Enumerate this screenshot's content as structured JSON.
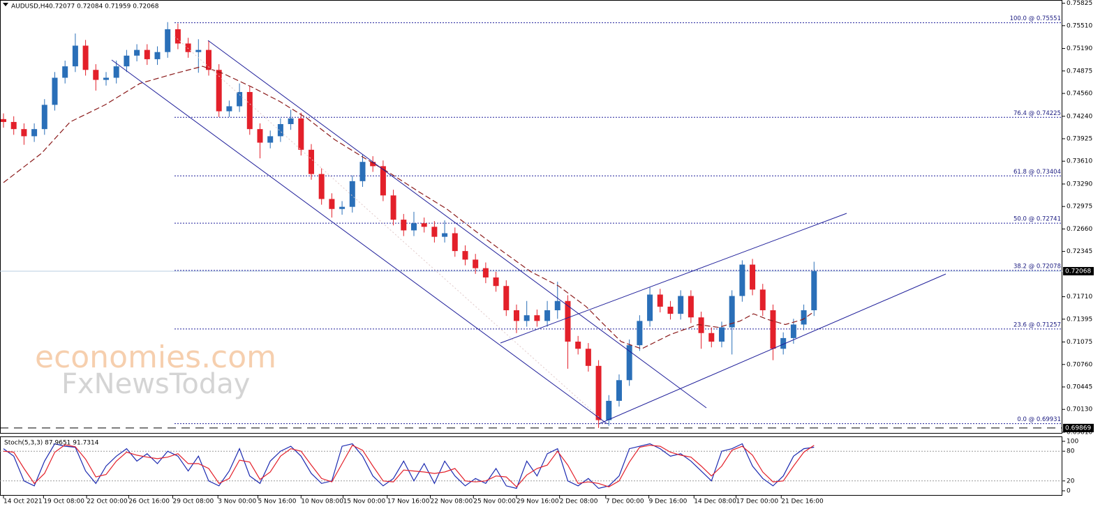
{
  "chart_data": {
    "type": "candlestick",
    "symbol": "AUDUSD,H4",
    "ohlc_text": "0.72077 0.72084 0.71959 0.72068",
    "xlim": [
      -0.34,
      103.2
    ],
    "ylim": [
      0.6979,
      0.7587
    ],
    "up_color": "#2a6fb8",
    "down_color": "#e3202a",
    "open": [
      0.742,
      0.7416,
      0.7406,
      0.7396,
      0.7406,
      0.744,
      0.7478,
      0.7494,
      0.7523,
      0.7489,
      0.7475,
      0.7478,
      0.7494,
      0.7509,
      0.7517,
      0.7504,
      0.7514,
      0.7546,
      0.7526,
      0.7514,
      0.7517,
      0.7489,
      0.7431,
      0.7438,
      0.7458,
      0.7406,
      0.7387,
      0.7396,
      0.7413,
      0.7421,
      0.7377,
      0.7343,
      0.7308,
      0.7294,
      0.7297,
      0.7333,
      0.736,
      0.7354,
      0.7313,
      0.7279,
      0.7264,
      0.7274,
      0.7269,
      0.7255,
      0.726,
      0.7235,
      0.7223,
      0.7211,
      0.7198,
      0.7186,
      0.7152,
      0.7137,
      0.7145,
      0.7137,
      0.7152,
      0.7165,
      0.7108,
      0.7098,
      0.7074,
      0.6998,
      0.7025,
      0.7054,
      0.7103,
      0.7137,
      0.7174,
      0.7157,
      0.7147,
      0.7172,
      0.7142,
      0.712,
      0.7108,
      0.7128,
      0.7172,
      0.7216,
      0.7181,
      0.7152,
      0.7098,
      0.7113,
      0.7132,
      0.7152
    ],
    "high": [
      0.7428,
      0.7424,
      0.7414,
      0.7414,
      0.7448,
      0.7486,
      0.7502,
      0.754,
      0.7531,
      0.7497,
      0.7486,
      0.7502,
      0.7517,
      0.7525,
      0.7525,
      0.7522,
      0.7556,
      0.7554,
      0.7534,
      0.7532,
      0.753,
      0.7497,
      0.7446,
      0.747,
      0.7466,
      0.7414,
      0.7404,
      0.7421,
      0.7433,
      0.7429,
      0.7385,
      0.7351,
      0.7316,
      0.7305,
      0.7341,
      0.737,
      0.7368,
      0.7362,
      0.7321,
      0.7287,
      0.729,
      0.7282,
      0.7277,
      0.7278,
      0.7268,
      0.7243,
      0.7231,
      0.7219,
      0.7206,
      0.7194,
      0.716,
      0.7165,
      0.7153,
      0.7165,
      0.7192,
      0.7173,
      0.7116,
      0.7106,
      0.7082,
      0.7033,
      0.7062,
      0.7111,
      0.7145,
      0.7184,
      0.7182,
      0.7165,
      0.718,
      0.718,
      0.715,
      0.7128,
      0.7136,
      0.718,
      0.7222,
      0.7224,
      0.7189,
      0.716,
      0.7121,
      0.714,
      0.716,
      0.722
    ],
    "low": [
      0.7408,
      0.7398,
      0.7384,
      0.7388,
      0.7398,
      0.7432,
      0.747,
      0.7486,
      0.7481,
      0.746,
      0.7467,
      0.747,
      0.7486,
      0.7501,
      0.7496,
      0.7496,
      0.7506,
      0.7518,
      0.7506,
      0.7485,
      0.7481,
      0.7423,
      0.7423,
      0.743,
      0.7398,
      0.7365,
      0.7379,
      0.7388,
      0.7405,
      0.7369,
      0.7335,
      0.73,
      0.7282,
      0.7286,
      0.7289,
      0.7325,
      0.7346,
      0.7305,
      0.7271,
      0.7256,
      0.7256,
      0.7261,
      0.7247,
      0.7247,
      0.7227,
      0.7215,
      0.7203,
      0.719,
      0.7178,
      0.7144,
      0.712,
      0.7129,
      0.7129,
      0.7129,
      0.714,
      0.707,
      0.709,
      0.7066,
      0.6987,
      0.699,
      0.7017,
      0.7046,
      0.7095,
      0.7129,
      0.7149,
      0.7139,
      0.7139,
      0.7134,
      0.7098,
      0.71,
      0.71,
      0.709,
      0.7164,
      0.7173,
      0.7144,
      0.7082,
      0.709,
      0.7105,
      0.7124,
      0.7144
    ],
    "close": [
      0.7416,
      0.7406,
      0.7396,
      0.7406,
      0.744,
      0.7478,
      0.7494,
      0.7523,
      0.7489,
      0.7475,
      0.7478,
      0.7494,
      0.7509,
      0.7517,
      0.7504,
      0.7514,
      0.7546,
      0.7526,
      0.7514,
      0.7517,
      0.7489,
      0.7431,
      0.7438,
      0.7458,
      0.7406,
      0.7387,
      0.7396,
      0.7413,
      0.7421,
      0.7377,
      0.7343,
      0.7308,
      0.7294,
      0.7297,
      0.7333,
      0.736,
      0.7354,
      0.7313,
      0.7279,
      0.7264,
      0.7274,
      0.7269,
      0.7255,
      0.726,
      0.7235,
      0.7223,
      0.7211,
      0.7198,
      0.7186,
      0.7152,
      0.7137,
      0.7145,
      0.7137,
      0.7152,
      0.7165,
      0.7108,
      0.7098,
      0.7074,
      0.6998,
      0.7025,
      0.7054,
      0.7103,
      0.7137,
      0.7174,
      0.7157,
      0.7147,
      0.7172,
      0.7142,
      0.712,
      0.7108,
      0.7128,
      0.7172,
      0.7216,
      0.7181,
      0.7152,
      0.7098,
      0.7113,
      0.7132,
      0.7152,
      0.7207
    ],
    "ma": {
      "color": "#8b1a1a",
      "x": [
        0,
        3.7,
        6.5,
        9.9,
        13.3,
        16.7,
        19.4,
        21.4,
        24.2,
        26.9,
        29.6,
        32.3,
        35.0,
        37.8,
        40.5,
        43.2,
        45.9,
        48.6,
        51.4,
        54.1,
        56.8,
        58.8,
        60.2,
        62.2,
        65.0,
        67.7,
        69.7,
        71.8,
        73.1,
        74.5,
        76.2,
        77.9,
        78.9
      ],
      "values": [
        0.7331,
        0.7372,
        0.7416,
        0.744,
        0.747,
        0.7484,
        0.7494,
        0.7484,
        0.7465,
        0.7445,
        0.7421,
        0.7391,
        0.7367,
        0.7343,
        0.7318,
        0.7294,
        0.7264,
        0.7235,
        0.7206,
        0.7186,
        0.7157,
        0.7128,
        0.7108,
        0.7098,
        0.7118,
        0.7132,
        0.7128,
        0.7137,
        0.7147,
        0.7139,
        0.7132,
        0.7139,
        0.7149
      ]
    },
    "yticks": [
      0.75825,
      {
        "value": 0.7551,
        "label": "0.75510"
      },
      {
        "value": 0.7519,
        "label": "0.75190"
      },
      0.74875,
      {
        "value": 0.7456,
        "label": "0.74560"
      },
      {
        "value": 0.7424,
        "label": "0.74240"
      },
      0.73925,
      {
        "value": 0.7361,
        "label": "0.73610"
      },
      {
        "value": 0.7329,
        "label": "0.73290"
      },
      0.72975,
      {
        "value": 0.7266,
        "label": "0.72660"
      },
      0.72345,
      {
        "value": 0.7171,
        "label": "0.71710"
      },
      0.71395,
      0.71075,
      {
        "value": 0.7076,
        "label": "0.70760"
      },
      0.70445,
      {
        "value": 0.7013,
        "label": "0.70130"
      },
      {
        "value": 0.6981,
        "label": "0.69810"
      }
    ],
    "current_price": 0.72068,
    "dashed_level": 0.69869,
    "fibonacci": [
      {
        "label": "100.0 @ 0.75551",
        "value": 0.75551
      },
      {
        "label": "76.4 @ 0.74225",
        "value": 0.74225
      },
      {
        "label": "61.8 @ 0.73404",
        "value": 0.73404
      },
      {
        "label": "50.0 @ 0.72741",
        "value": 0.72741
      },
      {
        "label": "38.2 @ 0.72078",
        "value": 0.72078
      },
      {
        "label": "23.6 @ 0.71257",
        "value": 0.71257
      },
      {
        "label": "0.0 @ 0.69931",
        "value": 0.69931
      }
    ],
    "xticks": [
      {
        "value": 0,
        "label": "14 Oct 2021"
      },
      {
        "value": 3.9,
        "label": "19 Oct 08:00"
      },
      {
        "value": 8.1,
        "label": "22 Oct 00:00"
      },
      {
        "value": 12.2,
        "label": "26 Oct 16:00"
      },
      {
        "value": 16.5,
        "label": "29 Oct 08:00"
      },
      {
        "value": 20.9,
        "label": "3 Nov 00:00"
      },
      {
        "value": 24.8,
        "label": "5 Nov 16:00"
      },
      {
        "value": 29.0,
        "label": "10 Nov 08:00"
      },
      {
        "value": 33.1,
        "label": "15 Nov 00:00"
      },
      {
        "value": 37.4,
        "label": "17 Nov 16:00"
      },
      {
        "value": 41.6,
        "label": "22 Nov 08:00"
      },
      {
        "value": 45.8,
        "label": "25 Nov 00:00"
      },
      {
        "value": 50.0,
        "label": "29 Nov 16:00"
      },
      {
        "value": 54.2,
        "label": "2 Dec 08:00"
      },
      {
        "value": 58.7,
        "label": "7 Dec 00:00"
      },
      {
        "value": 62.9,
        "label": "9 Dec 16:00"
      },
      {
        "value": 67.3,
        "label": "14 Dec 08:00"
      },
      {
        "value": 71.4,
        "label": "17 Dec 00:00"
      },
      {
        "value": 75.8,
        "label": "21 Dec 16:00"
      }
    ],
    "stochastic": {
      "label": "Stoch(5,3,3) 87.9651 91.7314",
      "ylim": [
        0,
        100
      ],
      "yticks": [
        0,
        20,
        80,
        100
      ],
      "series": [
        {
          "color": "#1c2ab0",
          "values": [
            85,
            70,
            20,
            10,
            60,
            95,
            90,
            88,
            40,
            15,
            50,
            70,
            85,
            60,
            75,
            55,
            80,
            70,
            40,
            70,
            20,
            10,
            40,
            85,
            30,
            15,
            60,
            80,
            90,
            70,
            35,
            15,
            20,
            90,
            95,
            70,
            30,
            10,
            25,
            60,
            20,
            55,
            15,
            60,
            30,
            10,
            25,
            15,
            45,
            10,
            5,
            60,
            30,
            75,
            85,
            20,
            10,
            25,
            5,
            10,
            30,
            85,
            90,
            95,
            85,
            70,
            75,
            60,
            40,
            20,
            80,
            85,
            95,
            50,
            25,
            10,
            30,
            70,
            85,
            88
          ]
        },
        {
          "color": "#e3202a",
          "values": [
            80,
            78,
            45,
            15,
            35,
            78,
            93,
            89,
            64,
            28,
            33,
            60,
            78,
            72,
            68,
            65,
            68,
            75,
            55,
            55,
            45,
            15,
            25,
            62,
            58,
            23,
            38,
            70,
            85,
            80,
            52,
            25,
            18,
            55,
            92,
            82,
            50,
            20,
            18,
            42,
            40,
            38,
            35,
            38,
            45,
            20,
            18,
            20,
            30,
            28,
            8,
            32,
            45,
            52,
            80,
            52,
            15,
            18,
            15,
            8,
            20,
            58,
            88,
            92,
            90,
            78,
            72,
            68,
            50,
            30,
            50,
            82,
            90,
            72,
            38,
            18,
            20,
            50,
            78,
            92
          ]
        }
      ]
    },
    "watermark": {
      "line1": "economies.com",
      "line2": "FxNewsToday"
    }
  }
}
